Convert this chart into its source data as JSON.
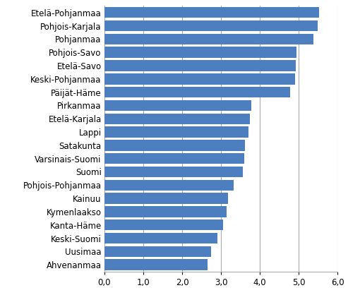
{
  "categories": [
    "Ahvenanmaa",
    "Uusimaa",
    "Keski-Suomi",
    "Kanta-Häme",
    "Kymenlaakso",
    "Kainuu",
    "Pohjois-Pohjanmaa",
    "Suomi",
    "Varsinais-Suomi",
    "Satakunta",
    "Lappi",
    "Etelä-Karjala",
    "Pirkanmaa",
    "Päijät-Häme",
    "Keski-Pohjanmaa",
    "Etelä-Savo",
    "Pohjois-Savo",
    "Pohjanmaa",
    "Pohjois-Karjala",
    "Etelä-Pohjanmaa"
  ],
  "values": [
    2.65,
    2.75,
    2.9,
    3.05,
    3.15,
    3.18,
    3.32,
    3.57,
    3.6,
    3.62,
    3.7,
    3.75,
    3.78,
    4.78,
    4.9,
    4.92,
    4.95,
    5.38,
    5.48,
    5.52
  ],
  "bar_color": "#4d7ebf",
  "xlim": [
    0,
    6.0
  ],
  "xticks": [
    0.0,
    1.0,
    2.0,
    3.0,
    4.0,
    5.0,
    6.0
  ],
  "xtick_labels": [
    "0,0",
    "1,0",
    "2,0",
    "3,0",
    "4,0",
    "5,0",
    "6,0"
  ],
  "grid_color": "#aaaaaa",
  "background_color": "#ffffff",
  "bar_height": 0.82,
  "font_size": 8.5
}
